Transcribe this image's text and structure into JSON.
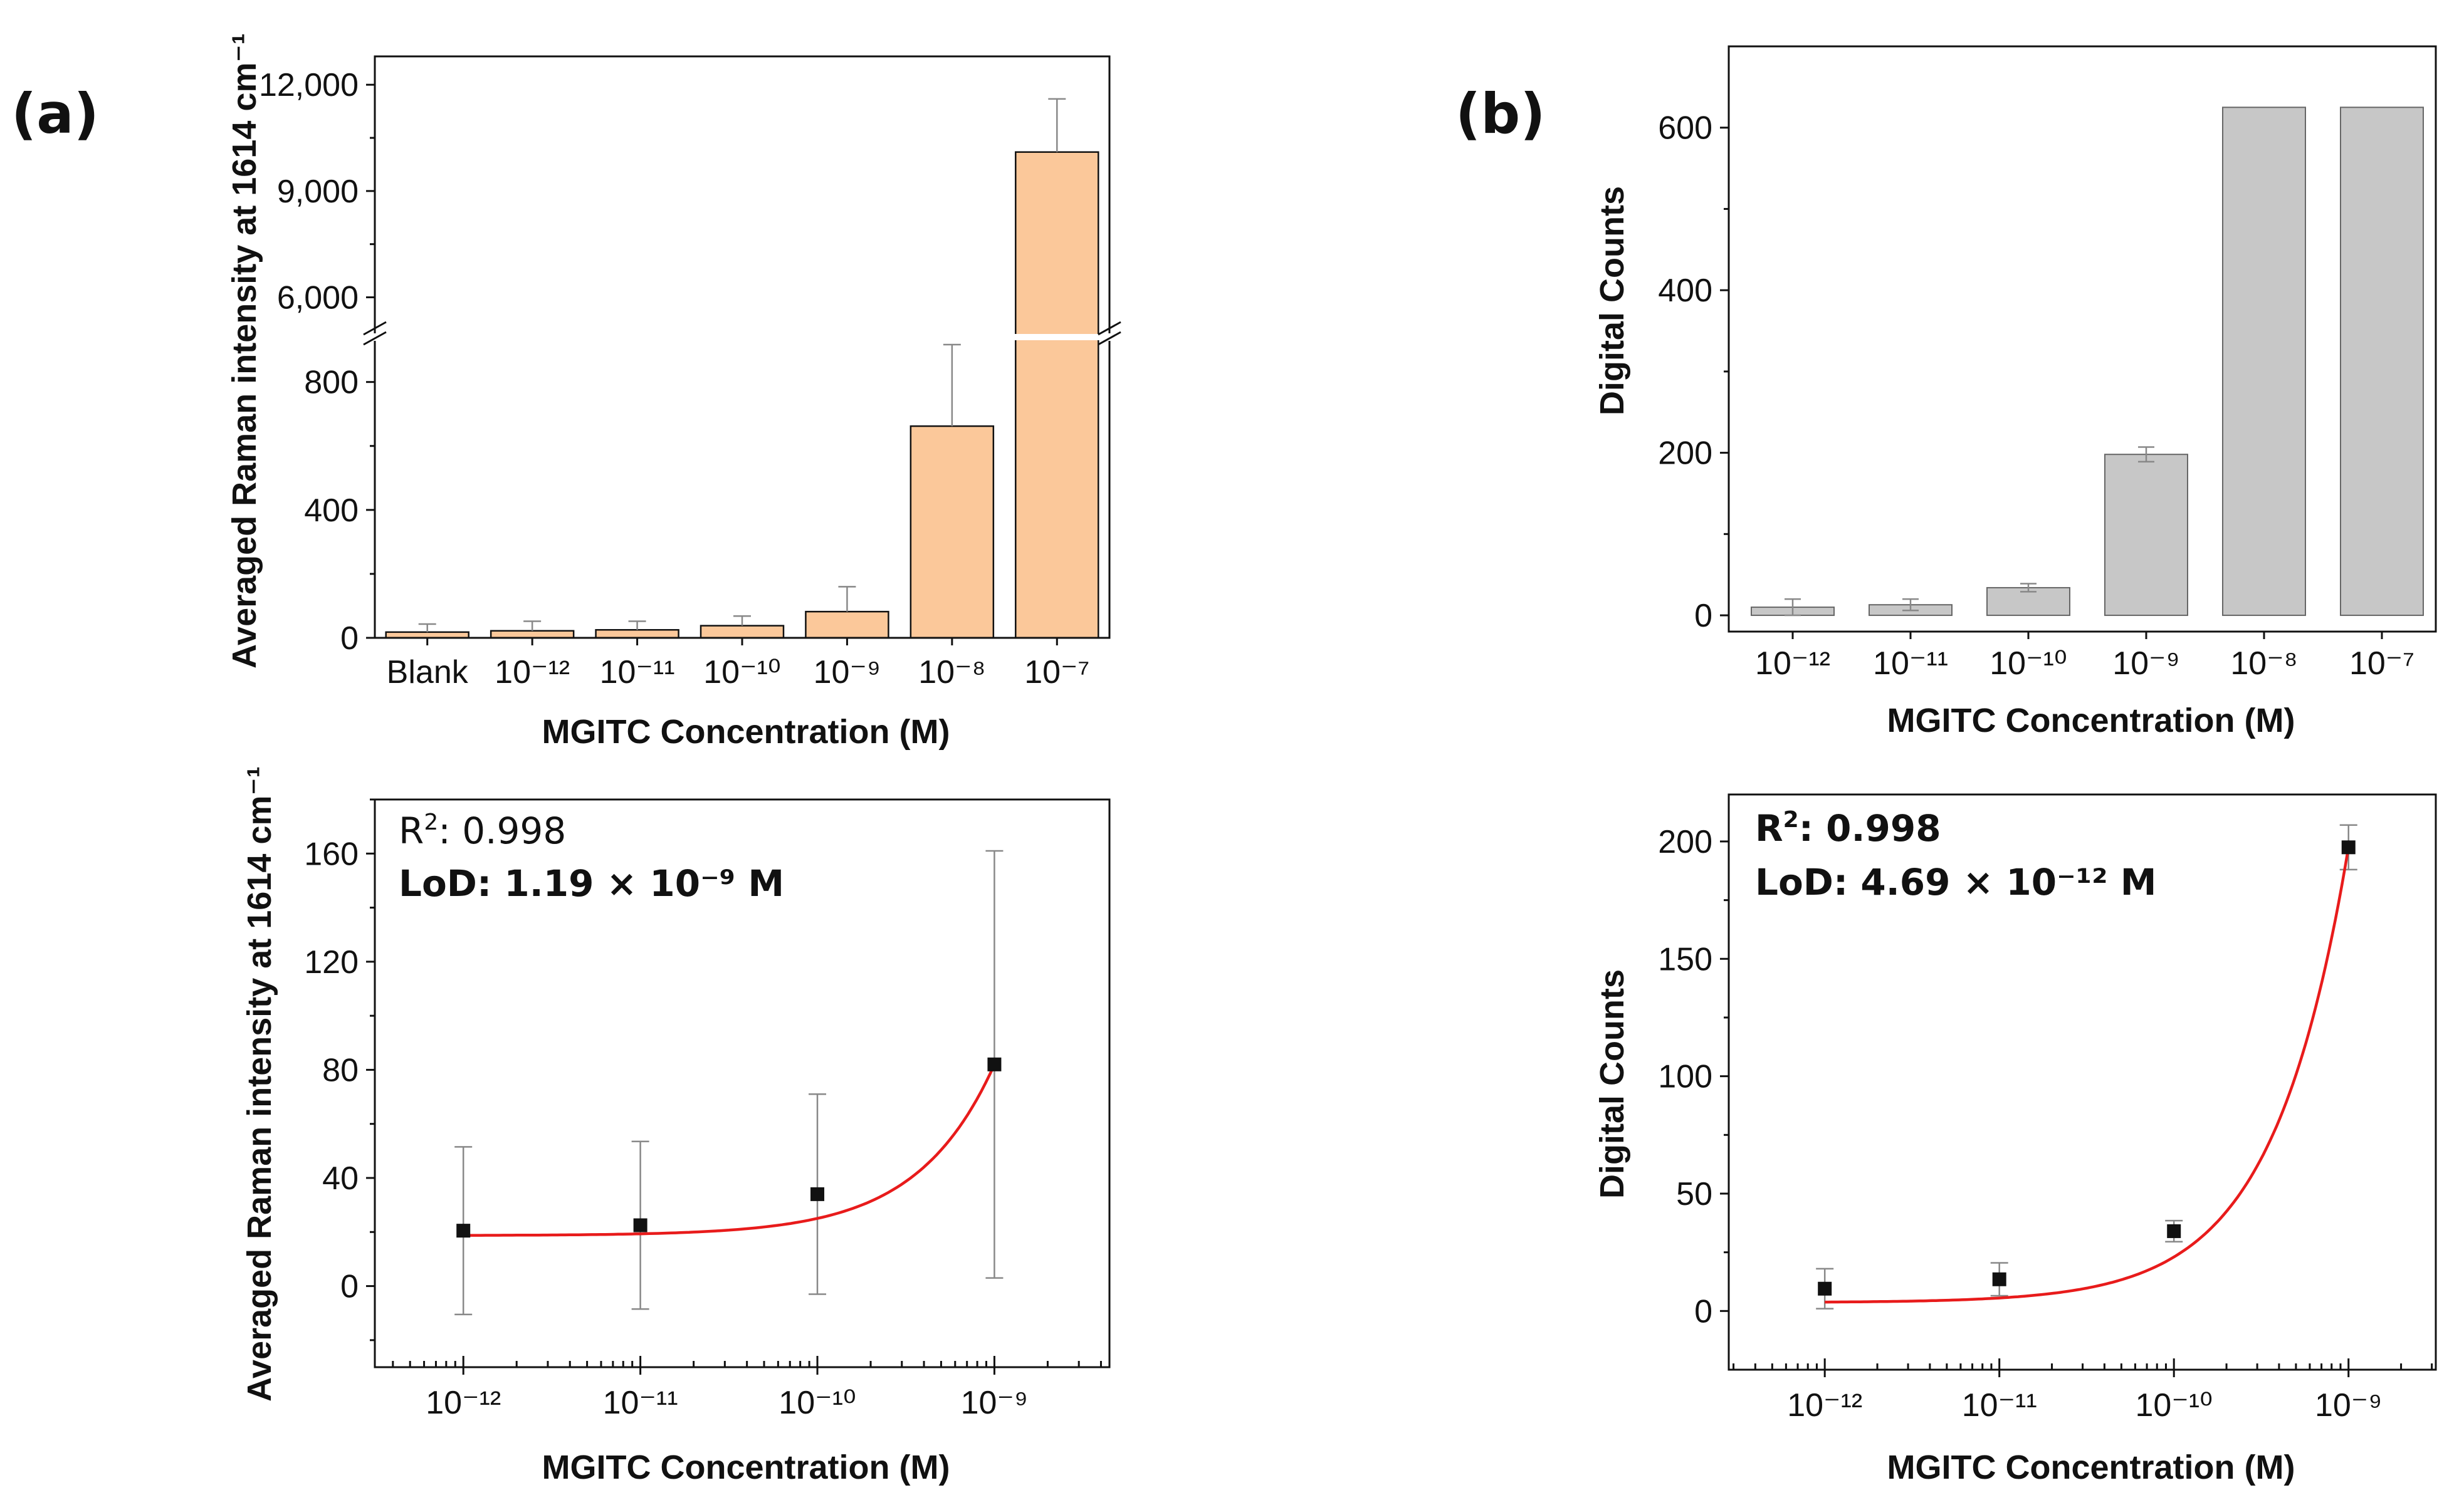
{
  "panel_labels": {
    "a": "(a)",
    "b": "(b)"
  },
  "chart_data": [
    {
      "id": "a_top",
      "type": "bar",
      "xlabel": "MGITC Concentration (M)",
      "ylabel": "Averaged Raman intensity at 1614 cm⁻¹",
      "categories": [
        "Blank",
        "10⁻¹²",
        "10⁻¹¹",
        "10⁻¹⁰",
        "10⁻⁹",
        "10⁻⁸",
        "10⁻⁷"
      ],
      "values": [
        18,
        22,
        25,
        38,
        82,
        662,
        10100
      ],
      "errors": [
        25,
        30,
        27,
        30,
        78,
        255,
        1500
      ],
      "y_broken": true,
      "ylim_lower": [
        0,
        960
      ],
      "ylim_upper": [
        4700,
        12800
      ],
      "yticks_lower": [
        "0",
        "400",
        "800"
      ],
      "yticks_upper": [
        "6,000",
        "9,000",
        "12,000"
      ],
      "ytick_values_lower": [
        0,
        400,
        800
      ],
      "ytick_values_upper": [
        6000,
        9000,
        12000
      ],
      "bar_color": "#fbc89a"
    },
    {
      "id": "a_bottom",
      "type": "scatter",
      "xlabel": "MGITC Concentration (M)",
      "ylabel": "Averaged Raman intensity at 1614 cm⁻¹",
      "x_log10": [
        -12,
        -11,
        -10,
        -9
      ],
      "xticks": [
        "10⁻¹²",
        "10⁻¹¹",
        "10⁻¹⁰",
        "10⁻⁹"
      ],
      "y": [
        20.5,
        22.5,
        34,
        82
      ],
      "errors": [
        31,
        31,
        37,
        79
      ],
      "xlim_log10": [
        -12.5,
        -8.35
      ],
      "ylim": [
        -30,
        180
      ],
      "yticks": [
        "0",
        "40",
        "80",
        "120",
        "160"
      ],
      "ytick_values": [
        0,
        40,
        80,
        120,
        160
      ],
      "fit": {
        "model": "y = a + b * 10^(x+9)",
        "a": 18.7,
        "b": 63.3,
        "color": "#e81b1b"
      },
      "annotation": {
        "r2_prefix": "R",
        "r2_sup": "2",
        "r2_value": ": 0.998",
        "lod_text": "LoD: 1.19 × 10⁻⁹ M"
      }
    },
    {
      "id": "b_top",
      "type": "bar",
      "xlabel": "MGITC Concentration (M)",
      "ylabel": "Digital Counts",
      "categories": [
        "10⁻¹²",
        "10⁻¹¹",
        "10⁻¹⁰",
        "10⁻⁹",
        "10⁻⁸",
        "10⁻⁷"
      ],
      "values": [
        10,
        13,
        34,
        198,
        625,
        625
      ],
      "errors": [
        10,
        7,
        5,
        9,
        0,
        0
      ],
      "ylim": [
        -20,
        700
      ],
      "yticks": [
        "0",
        "200",
        "400",
        "600"
      ],
      "ytick_values": [
        0,
        200,
        400,
        600
      ],
      "bar_color": "#c7c7c7"
    },
    {
      "id": "b_bottom",
      "type": "scatter",
      "xlabel": "MGITC Concentration (M)",
      "ylabel": "Digital Counts",
      "x_log10": [
        -12,
        -11,
        -10,
        -9
      ],
      "xticks": [
        "10⁻¹²",
        "10⁻¹¹",
        "10⁻¹⁰",
        "10⁻⁹"
      ],
      "y": [
        9.5,
        13.5,
        34,
        197.5
      ],
      "errors": [
        8.5,
        7,
        4.5,
        9.5
      ],
      "xlim_log10": [
        -12.55,
        -8.5
      ],
      "ylim": [
        -25,
        220
      ],
      "yticks": [
        "0",
        "50",
        "100",
        "150",
        "200"
      ],
      "ytick_values": [
        0,
        50,
        100,
        150,
        200
      ],
      "fit": {
        "model": "y = a + b * 10^(x+9)",
        "a": 3.6,
        "b": 194.0,
        "color": "#e81b1b"
      },
      "annotation": {
        "r2_prefix": "R",
        "r2_sup": "2",
        "r2_value": ": 0.998",
        "lod_text": "LoD: 4.69 × 10⁻¹² M"
      }
    }
  ]
}
